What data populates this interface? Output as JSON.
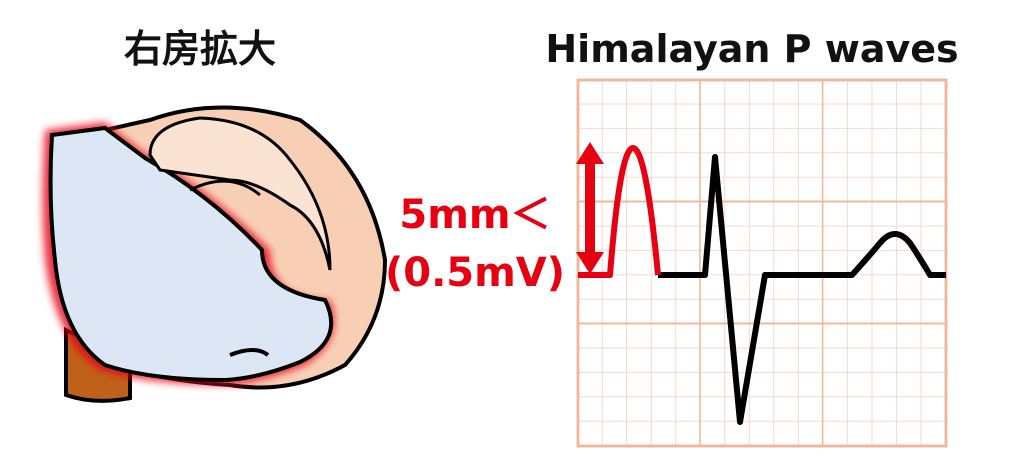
{
  "left_title": "右房拡大",
  "right_title": "Himalayan P waves",
  "annotation": {
    "line1": "5mm＜",
    "line2": "(0.5mV)"
  }
}
